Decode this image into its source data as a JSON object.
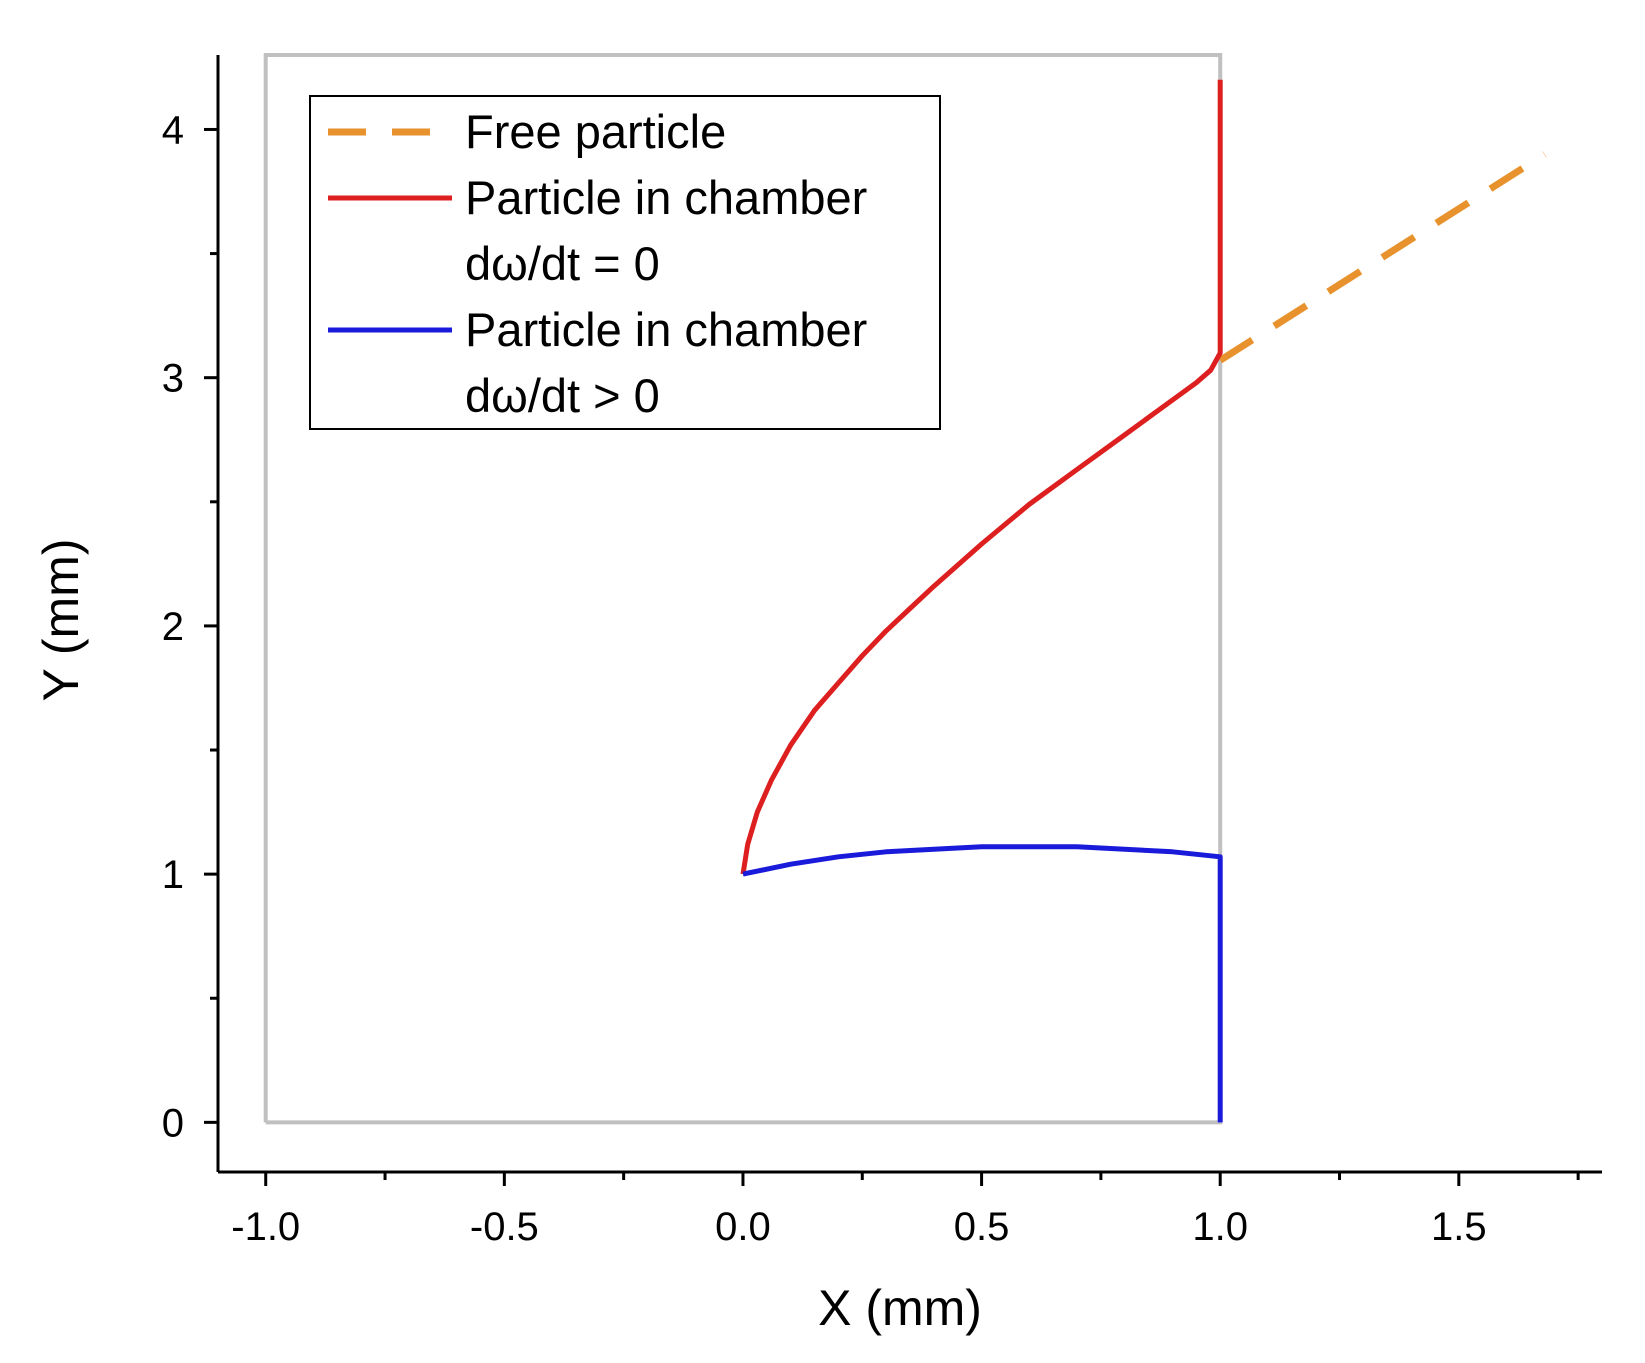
{
  "chart_data": {
    "type": "line",
    "title": "",
    "xlabel": "X (mm)",
    "ylabel": "Y (mm)",
    "xlim": [
      -1.1,
      1.8
    ],
    "ylim": [
      -0.2,
      4.3
    ],
    "xticks": [
      -1.0,
      -0.5,
      0.0,
      0.5,
      1.0,
      1.5
    ],
    "xtick_labels": [
      "-1.0",
      "-0.5",
      "0.0",
      "0.5",
      "1.0",
      "1.5"
    ],
    "xminor": [
      -0.75,
      -0.25,
      0.25,
      0.75,
      1.25,
      1.75
    ],
    "yticks": [
      0,
      1,
      2,
      3,
      4
    ],
    "ytick_labels": [
      "0",
      "1",
      "2",
      "3",
      "4"
    ],
    "yminor": [
      0.5,
      1.5,
      2.5,
      3.5
    ],
    "grid": false,
    "legend_position": "top-left",
    "chamber": {
      "color": "#c0c0c0",
      "x": [
        -1.0,
        1.0,
        1.0,
        -1.0,
        -1.0
      ],
      "y": [
        0.0,
        0.0,
        4.3,
        4.3,
        0.0
      ]
    },
    "series": [
      {
        "name": "Free particle",
        "color": "#e8922e",
        "style": "dashed",
        "x": [
          1.0,
          1.68
        ],
        "y": [
          3.07,
          3.9
        ]
      },
      {
        "name": "Particle in chamber",
        "name_line2": "dω/dt = 0",
        "color": "#dd1f1f",
        "style": "solid",
        "x": [
          0.0,
          0.01,
          0.03,
          0.06,
          0.1,
          0.15,
          0.2,
          0.25,
          0.3,
          0.35,
          0.4,
          0.5,
          0.6,
          0.7,
          0.8,
          0.9,
          0.95,
          0.98,
          1.0,
          1.0
        ],
        "y": [
          1.0,
          1.12,
          1.25,
          1.38,
          1.52,
          1.66,
          1.77,
          1.88,
          1.98,
          2.07,
          2.16,
          2.33,
          2.49,
          2.63,
          2.77,
          2.91,
          2.98,
          3.03,
          3.1,
          4.2
        ]
      },
      {
        "name": "Particle in chamber",
        "name_line2": "dω/dt > 0",
        "color": "#1a1adb",
        "style": "solid",
        "x": [
          0.0,
          0.1,
          0.2,
          0.3,
          0.4,
          0.5,
          0.6,
          0.7,
          0.8,
          0.9,
          1.0,
          1.0
        ],
        "y": [
          1.0,
          1.04,
          1.07,
          1.09,
          1.1,
          1.11,
          1.11,
          1.11,
          1.1,
          1.09,
          1.07,
          0.0
        ]
      }
    ]
  }
}
